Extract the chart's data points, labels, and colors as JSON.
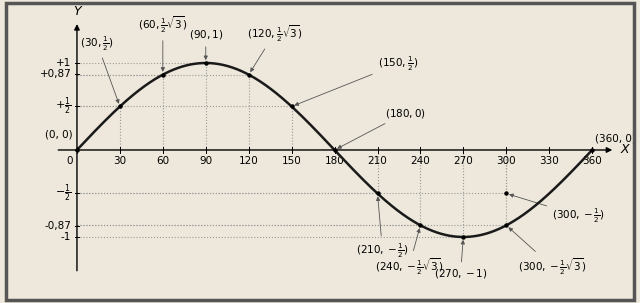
{
  "x_label": "X",
  "y_label": "Y",
  "line_color": "#1a1a1a",
  "line_width": 1.8,
  "background_color": "#ede8db",
  "grid_color": "#999999",
  "x_ticks": [
    0,
    30,
    60,
    90,
    120,
    150,
    180,
    210,
    240,
    270,
    300,
    330,
    360
  ],
  "xlim": [
    -18,
    380
  ],
  "ylim": [
    -1.55,
    1.55
  ]
}
